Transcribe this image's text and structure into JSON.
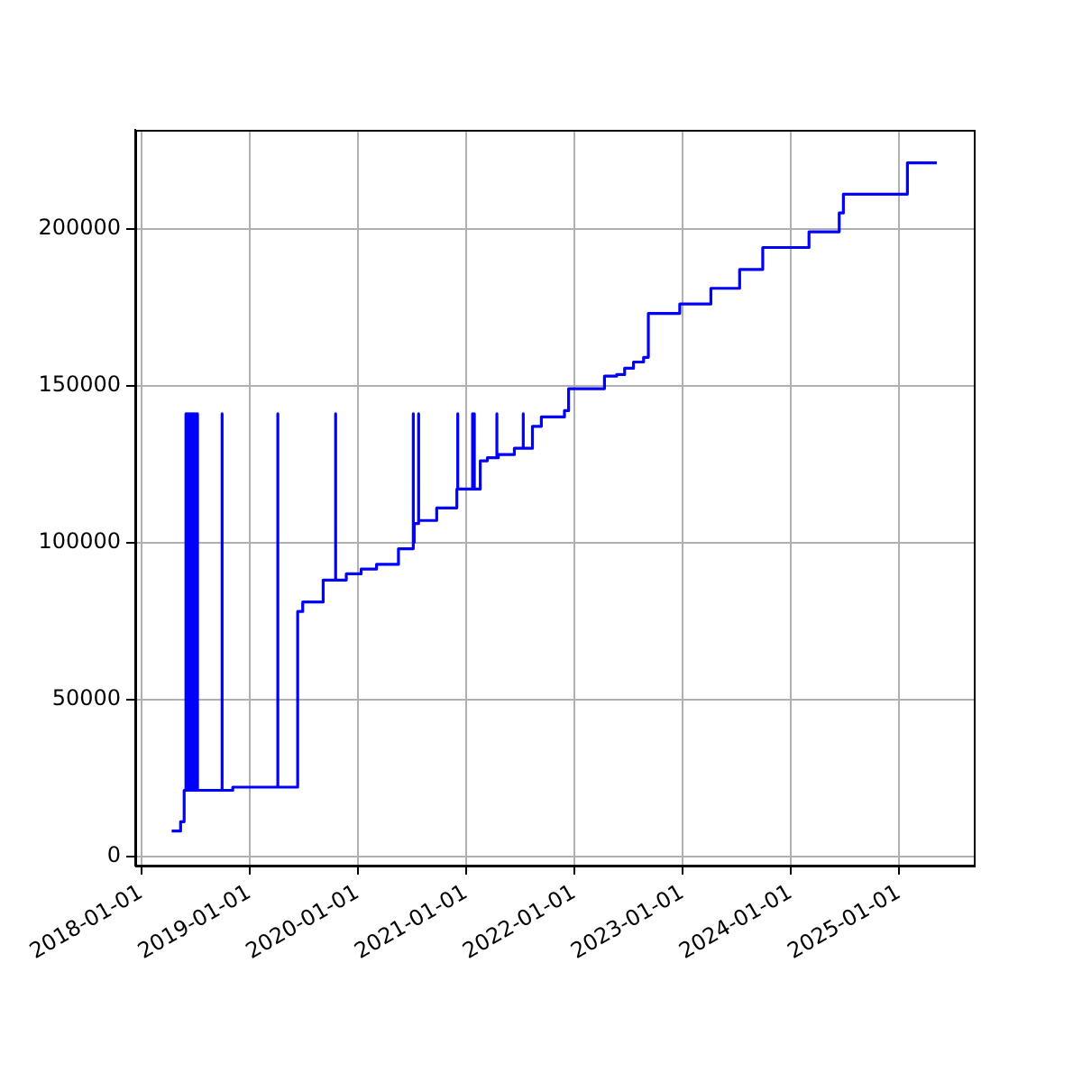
{
  "chart_data": {
    "type": "step",
    "xlim": [
      "2017-12-12",
      "2025-09-10"
    ],
    "ylim": [
      -3000,
      231500
    ],
    "xticks": [
      "2018-01-01",
      "2019-01-01",
      "2020-01-01",
      "2021-01-01",
      "2022-01-01",
      "2023-01-01",
      "2024-01-01",
      "2025-01-01"
    ],
    "yticks": [
      0,
      50000,
      100000,
      150000,
      200000
    ],
    "grid": true,
    "series": [
      {
        "color": "#0000ff",
        "x": [
          "2018-04-14",
          "2018-05-14",
          "2018-05-26",
          "2018-06-01",
          "2018-06-01",
          "2018-06-06",
          "2018-06-06",
          "2018-06-10",
          "2018-06-10",
          "2018-06-15",
          "2018-06-15",
          "2018-06-20",
          "2018-06-20",
          "2018-06-25",
          "2018-06-25",
          "2018-06-30",
          "2018-06-30",
          "2018-07-05",
          "2018-07-05",
          "2018-07-10",
          "2018-07-10",
          "2018-10-01",
          "2018-10-01",
          "2018-11-06",
          "2019-04-07",
          "2019-04-07",
          "2019-06-13",
          "2019-06-30",
          "2019-09-07",
          "2019-10-19",
          "2019-10-19",
          "2019-11-24",
          "2020-01-13",
          "2020-03-05",
          "2020-05-18",
          "2020-07-07",
          "2020-07-07",
          "2020-07-10",
          "2020-07-25",
          "2020-07-25",
          "2020-09-24",
          "2020-12-01",
          "2020-12-04",
          "2020-12-04",
          "2021-01-23",
          "2021-01-23",
          "2021-01-29",
          "2021-01-29",
          "2021-02-18",
          "2021-03-14",
          "2021-04-15",
          "2021-04-15",
          "2021-04-20",
          "2021-06-13",
          "2021-07-13",
          "2021-07-13",
          "2021-08-13",
          "2021-09-12",
          "2021-11-29",
          "2021-12-13",
          "2022-04-13",
          "2022-05-24",
          "2022-06-20",
          "2022-07-20",
          "2022-08-23",
          "2022-09-08",
          "2022-12-23",
          "2023-04-07",
          "2023-07-13",
          "2023-09-29",
          "2024-03-03",
          "2024-06-13",
          "2024-06-27",
          "2025-01-29",
          "2025-05-08"
        ],
        "values": [
          8000,
          11000,
          21000,
          141000,
          21000,
          141000,
          21000,
          141000,
          21000,
          141000,
          21000,
          141000,
          21000,
          141000,
          21000,
          141000,
          21000,
          141000,
          21000,
          141000,
          21000,
          141000,
          21000,
          22000,
          141000,
          22000,
          78000,
          81000,
          88000,
          141000,
          88000,
          90000,
          91500,
          93000,
          98000,
          141000,
          100000,
          106000,
          141000,
          107000,
          111000,
          117000,
          141000,
          117000,
          141000,
          117000,
          141000,
          117000,
          126000,
          127000,
          141000,
          127000,
          128000,
          130000,
          141000,
          130000,
          137000,
          140000,
          142000,
          149000,
          153000,
          153500,
          155500,
          157500,
          159000,
          173000,
          176000,
          181000,
          187000,
          194000,
          199000,
          205000,
          211000,
          221000,
          221000
        ]
      }
    ]
  }
}
